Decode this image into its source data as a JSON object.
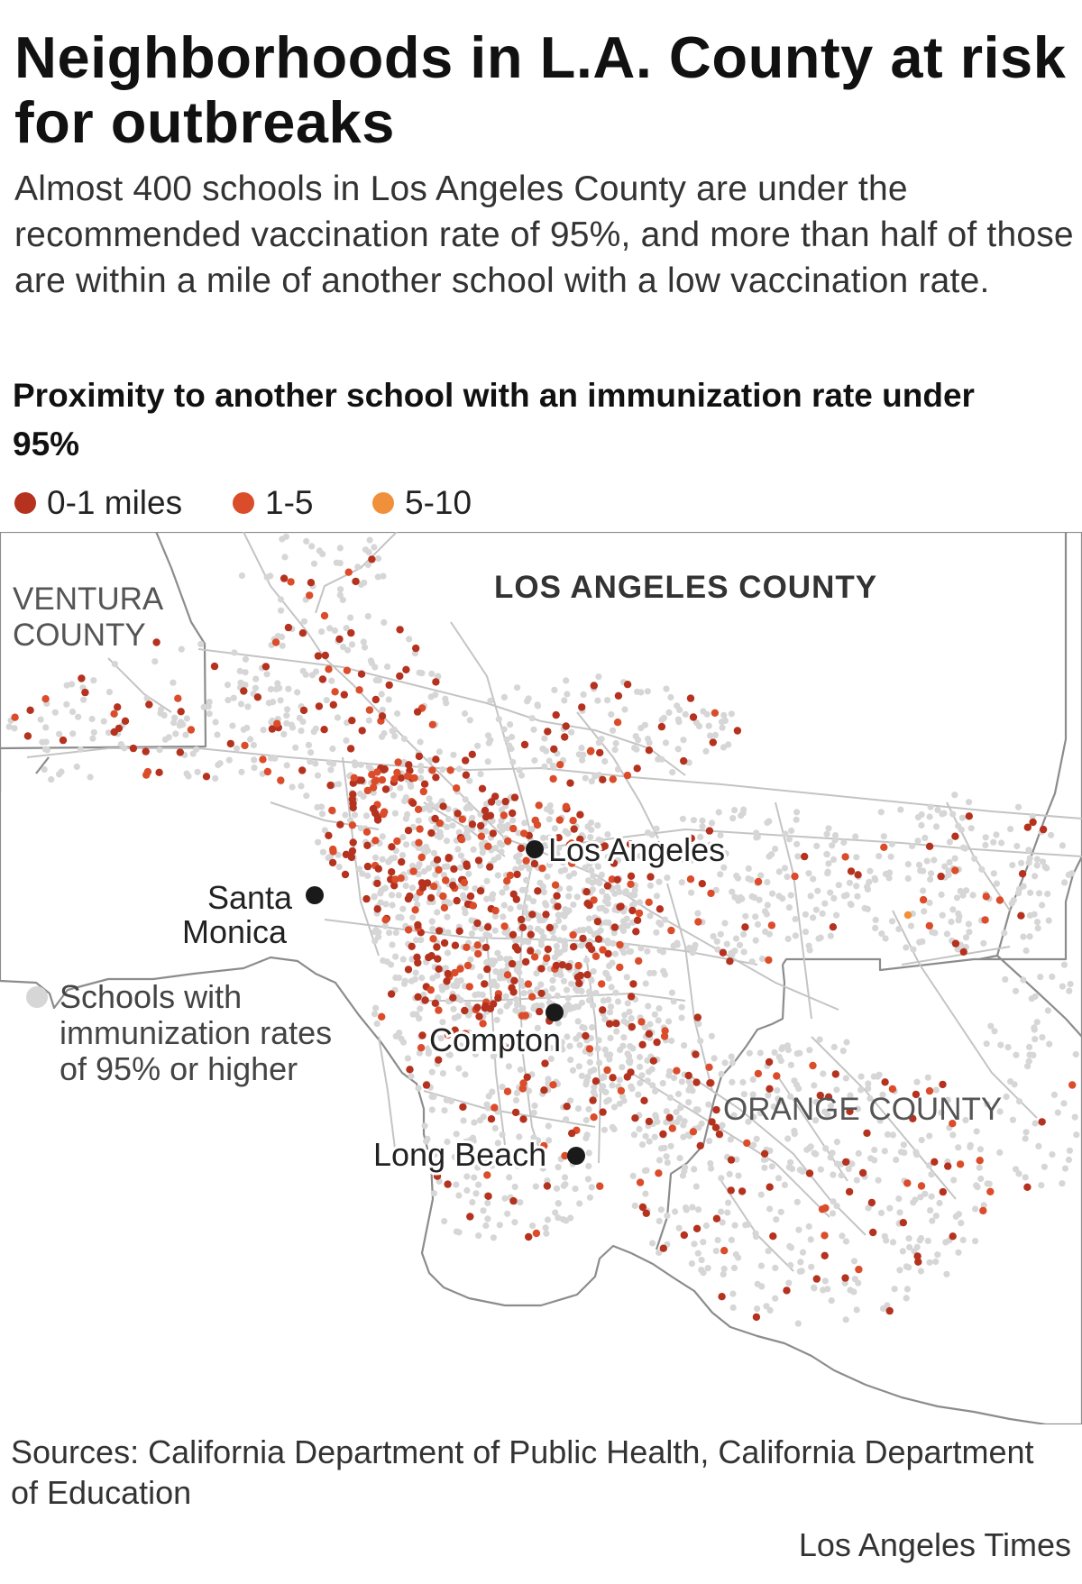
{
  "headline": "Neighborhoods in L.A. County at risk for outbreaks",
  "dek": "Almost 400 schools in Los Angeles County are under the recommended vaccination rate of 95%, and more than half of those are within a mile of another school with a low vaccination rate.",
  "legend": {
    "title": "Proximity to another school with an immunization rate under 95%",
    "items": [
      {
        "label": "0-1 miles",
        "color": "#b5321f"
      },
      {
        "label": "1-5",
        "color": "#db4c2a"
      },
      {
        "label": "5-10",
        "color": "#f0903a"
      }
    ],
    "gray": {
      "label": "Schools with immunization rates of 95% or higher",
      "color": "#d6d6d6"
    }
  },
  "map": {
    "regions": [
      "VENTURA COUNTY",
      "LOS ANGELES COUNTY",
      "ORANGE COUNTY"
    ],
    "cities": [
      "Los Angeles",
      "Santa Monica",
      "Compton",
      "Long Beach"
    ],
    "colors": {
      "boundary": "#8c8c8c",
      "road": "#c4c4c4",
      "city_marker": "#1a1a1a"
    }
  },
  "source": "Sources: California Department of Public Health, California Department of Education",
  "credit": "Los Angeles Times"
}
